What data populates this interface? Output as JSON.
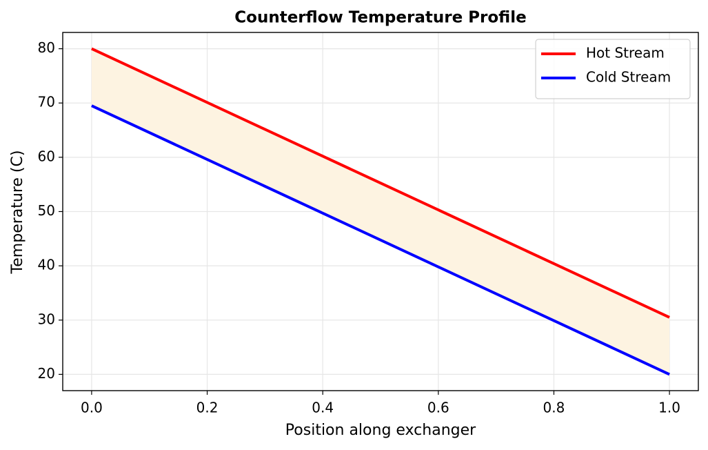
{
  "chart_data": {
    "type": "line",
    "title": "Counterflow Temperature Profile",
    "x_label": "Position along exchanger",
    "y_label": "Temperature (C)",
    "x": [
      0,
      1
    ],
    "series": [
      {
        "name": "Hot Stream",
        "color": "#ff0000",
        "values": [
          80,
          30.5
        ]
      },
      {
        "name": "Cold Stream",
        "color": "#0000ff",
        "values": [
          69.5,
          20
        ]
      }
    ],
    "fill_between_color": "#fdf3e1",
    "xlim": [
      -0.05,
      1.05
    ],
    "xticks": [
      {
        "value": 0,
        "label": "0.0"
      },
      {
        "value": 0.2,
        "label": "0.2"
      },
      {
        "value": 0.4,
        "label": "0.4"
      },
      {
        "value": 0.6,
        "label": "0.6"
      },
      {
        "value": 0.8,
        "label": "0.8"
      },
      {
        "value": 1,
        "label": "1.0"
      }
    ],
    "ylim": [
      17,
      83
    ],
    "yticks": [
      20,
      30,
      40,
      50,
      60,
      70,
      80
    ],
    "grid": true,
    "legend": "upper right"
  }
}
